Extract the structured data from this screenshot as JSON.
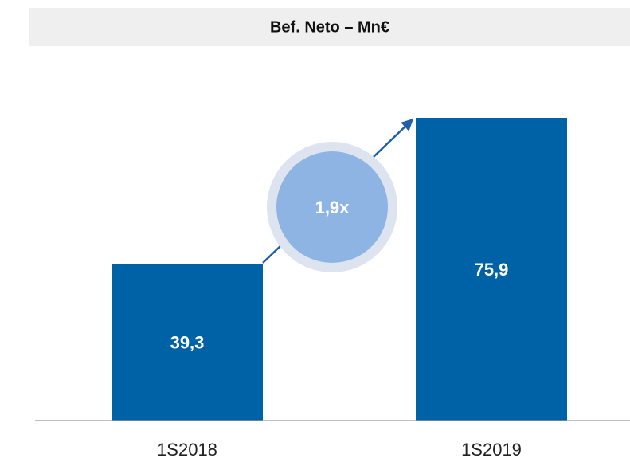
{
  "chart_data": {
    "type": "bar",
    "title": "Bef. Neto – Mn€",
    "categories": [
      "1S2018",
      "1S2019"
    ],
    "values": [
      39.3,
      75.9
    ],
    "value_labels": [
      "39,3",
      "75,9"
    ],
    "color": "#0062a6",
    "annotation": "1,9x"
  }
}
